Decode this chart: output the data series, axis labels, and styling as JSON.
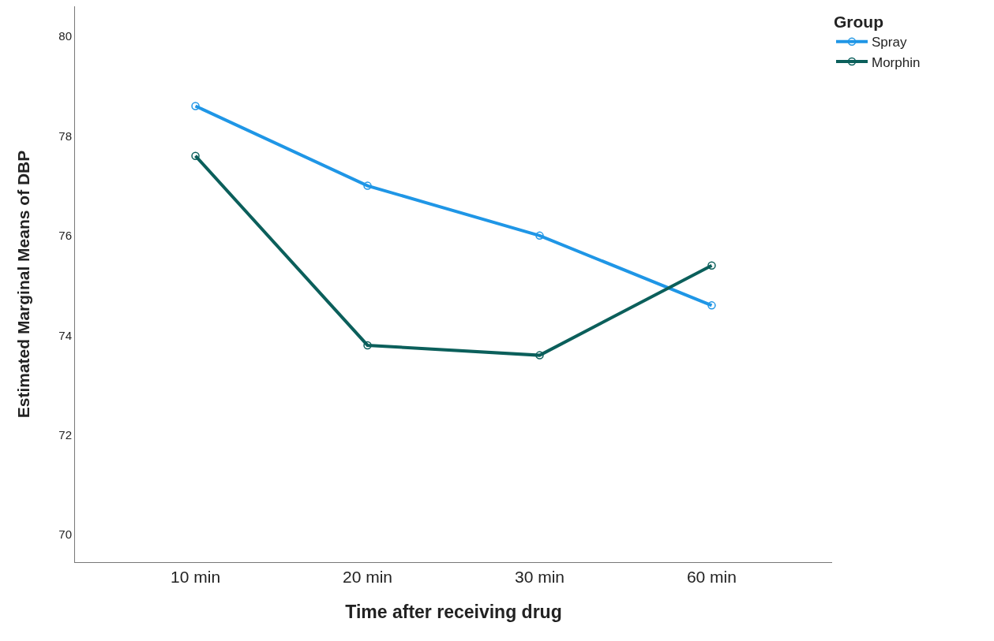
{
  "chart_data": {
    "type": "line",
    "xlabel": "Time after receiving drug",
    "ylabel": "Estimated Marginal Means of DBP",
    "legend_title": "Group",
    "categories": [
      "10 min",
      "20 min",
      "30 min",
      "60 min"
    ],
    "series": [
      {
        "name": "Spray",
        "color": "#1f96e6",
        "values": [
          78.6,
          77.0,
          76.0,
          74.6
        ]
      },
      {
        "name": "Morphin",
        "color": "#0b5f5b",
        "values": [
          77.6,
          73.8,
          73.6,
          75.4
        ]
      }
    ],
    "ylim": [
      69.45,
      80.6
    ],
    "yticks": [
      70,
      72,
      74,
      76,
      78,
      80
    ],
    "legend": "top right",
    "marker": "circle",
    "line_style": "solid"
  }
}
